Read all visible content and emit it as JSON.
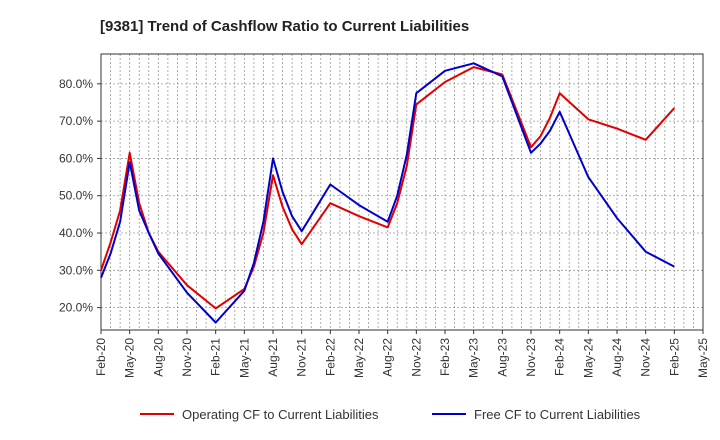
{
  "chart_data": {
    "type": "line",
    "title": "[9381]  Trend of Cashflow Ratio to Current Liabilities",
    "xlabel": "",
    "ylabel": "",
    "x_ticks": [
      "Feb-20",
      "May-20",
      "Aug-20",
      "Nov-20",
      "Feb-21",
      "May-21",
      "Aug-21",
      "Nov-21",
      "Feb-22",
      "May-22",
      "Aug-22",
      "Nov-22",
      "Feb-23",
      "May-23",
      "Aug-23",
      "Nov-23",
      "Feb-24",
      "May-24",
      "Aug-24",
      "Nov-24",
      "Feb-25",
      "May-25"
    ],
    "y_ticks": [
      20,
      30,
      40,
      50,
      60,
      70,
      80
    ],
    "y_tick_format": "{v}.0%",
    "ylim": [
      14,
      88
    ],
    "grid": true,
    "legend_position": "bottom",
    "series": [
      {
        "name": "Operating CF to Current Liabilities",
        "color": "#e00000",
        "points": [
          [
            0,
            30
          ],
          [
            1,
            37.5
          ],
          [
            2,
            46
          ],
          [
            3,
            61.5
          ],
          [
            4,
            48
          ],
          [
            5,
            40
          ],
          [
            6,
            35
          ],
          [
            9,
            26
          ],
          [
            12,
            19.8
          ],
          [
            15,
            25
          ],
          [
            16,
            31
          ],
          [
            17,
            40
          ],
          [
            18,
            55.5
          ],
          [
            19,
            47
          ],
          [
            20,
            41
          ],
          [
            21,
            37
          ],
          [
            24,
            48
          ],
          [
            27,
            44.5
          ],
          [
            30,
            41.5
          ],
          [
            31,
            48
          ],
          [
            32,
            58
          ],
          [
            33,
            74.5
          ],
          [
            36,
            80.5
          ],
          [
            39,
            84.5
          ],
          [
            42,
            82.5
          ],
          [
            45,
            63
          ],
          [
            46,
            66
          ],
          [
            47,
            71
          ],
          [
            48,
            77.5
          ],
          [
            51,
            70.5
          ],
          [
            54,
            68
          ],
          [
            57,
            65
          ],
          [
            60,
            73.5
          ]
        ]
      },
      {
        "name": "Free CF to Current Liabilities",
        "color": "#0000cc",
        "points": [
          [
            0,
            28
          ],
          [
            1,
            34.5
          ],
          [
            2,
            43
          ],
          [
            3,
            59
          ],
          [
            4,
            46
          ],
          [
            5,
            40
          ],
          [
            6,
            34.5
          ],
          [
            9,
            24
          ],
          [
            12,
            16
          ],
          [
            15,
            24.5
          ],
          [
            16,
            32
          ],
          [
            17,
            43
          ],
          [
            18,
            60
          ],
          [
            19,
            51
          ],
          [
            20,
            44.5
          ],
          [
            21,
            40.5
          ],
          [
            24,
            53
          ],
          [
            27,
            47.5
          ],
          [
            30,
            43
          ],
          [
            31,
            50
          ],
          [
            32,
            61
          ],
          [
            33,
            77.5
          ],
          [
            36,
            83.5
          ],
          [
            39,
            85.5
          ],
          [
            42,
            82
          ],
          [
            45,
            61.5
          ],
          [
            46,
            64
          ],
          [
            47,
            67.5
          ],
          [
            48,
            72.5
          ],
          [
            51,
            55
          ],
          [
            54,
            44
          ],
          [
            57,
            35
          ],
          [
            60,
            31
          ]
        ]
      }
    ]
  }
}
